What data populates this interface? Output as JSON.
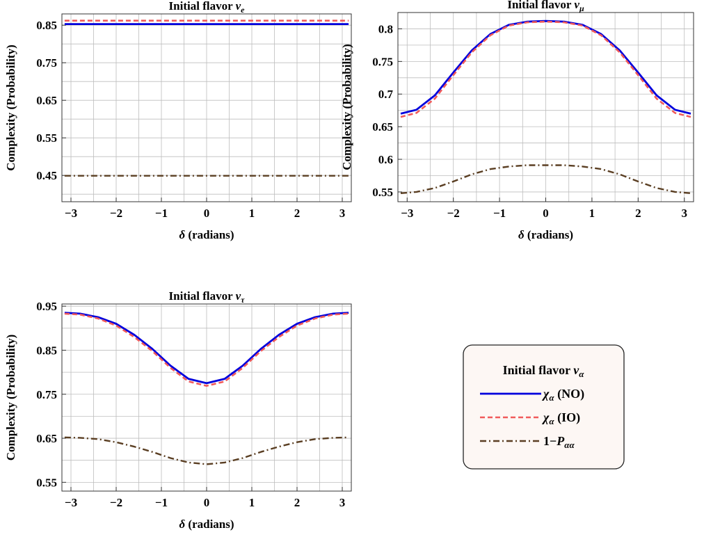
{
  "chart_data": [
    {
      "type": "line",
      "title": "Initial flavor ",
      "title_symbol": "ν",
      "title_sub": "e",
      "xlabel_symbol": "δ",
      "xlabel": " (radians)",
      "ylabel": "Complexity (Probability)",
      "xlim": [
        -3.2,
        3.2
      ],
      "ylim": [
        0.38,
        0.88
      ],
      "x_ticks": [
        -3,
        -2,
        -1,
        0,
        1,
        2,
        3
      ],
      "x_tick_labels": [
        "−3",
        "−2",
        "−1",
        "0",
        "1",
        "2",
        "3"
      ],
      "y_ticks": [
        0.45,
        0.55,
        0.65,
        0.75,
        0.85
      ],
      "y_tick_labels": [
        "0.45",
        "0.55",
        "0.65",
        "0.75",
        "0.85"
      ],
      "grid": true,
      "series": [
        {
          "key": "NO",
          "x": [
            -3.14,
            -2,
            -1,
            0,
            1,
            2,
            3.14
          ],
          "y": [
            0.853,
            0.853,
            0.853,
            0.853,
            0.853,
            0.853,
            0.853
          ]
        },
        {
          "key": "IO",
          "x": [
            -3.14,
            -2,
            -1,
            0,
            1,
            2,
            3.14
          ],
          "y": [
            0.862,
            0.862,
            0.862,
            0.862,
            0.862,
            0.862,
            0.862
          ]
        },
        {
          "key": "P",
          "x": [
            -3.14,
            -2,
            -1,
            0,
            1,
            2,
            3.14
          ],
          "y": [
            0.449,
            0.449,
            0.449,
            0.449,
            0.449,
            0.449,
            0.449
          ]
        }
      ]
    },
    {
      "type": "line",
      "title": "Initial flavor ",
      "title_symbol": "ν",
      "title_sub": "μ",
      "xlabel_symbol": "δ",
      "xlabel": " (radians)",
      "ylabel": "Complexity (Probability)",
      "xlim": [
        -3.2,
        3.2
      ],
      "ylim": [
        0.535,
        0.825
      ],
      "x_ticks": [
        -3,
        -2,
        -1,
        0,
        1,
        2,
        3
      ],
      "x_tick_labels": [
        "−3",
        "−2",
        "−1",
        "0",
        "1",
        "2",
        "3"
      ],
      "y_ticks": [
        0.55,
        0.6,
        0.65,
        0.7,
        0.75,
        0.8
      ],
      "y_tick_labels": [
        "0.55",
        "0.6",
        "0.65",
        "0.7",
        "0.75",
        "0.8"
      ],
      "grid": true,
      "series": [
        {
          "key": "NO",
          "x": [
            -3.14,
            -2.8,
            -2.4,
            -2,
            -1.6,
            -1.2,
            -0.8,
            -0.4,
            0,
            0.4,
            0.8,
            1.2,
            1.6,
            2,
            2.4,
            2.8,
            3.14
          ],
          "y": [
            0.67,
            0.676,
            0.698,
            0.733,
            0.767,
            0.792,
            0.806,
            0.811,
            0.812,
            0.811,
            0.806,
            0.792,
            0.767,
            0.733,
            0.698,
            0.676,
            0.67
          ]
        },
        {
          "key": "IO",
          "x": [
            -3.14,
            -2.8,
            -2.4,
            -2,
            -1.6,
            -1.2,
            -0.8,
            -0.4,
            0,
            0.4,
            0.8,
            1.2,
            1.6,
            2,
            2.4,
            2.8,
            3.14
          ],
          "y": [
            0.665,
            0.671,
            0.693,
            0.729,
            0.764,
            0.79,
            0.805,
            0.81,
            0.811,
            0.81,
            0.805,
            0.79,
            0.764,
            0.729,
            0.693,
            0.671,
            0.665
          ]
        },
        {
          "key": "P",
          "x": [
            -3.14,
            -2.8,
            -2.4,
            -2,
            -1.6,
            -1.2,
            -0.8,
            -0.4,
            0,
            0.4,
            0.8,
            1.2,
            1.6,
            2,
            2.4,
            2.8,
            3.14
          ],
          "y": [
            0.548,
            0.55,
            0.556,
            0.566,
            0.577,
            0.585,
            0.589,
            0.591,
            0.591,
            0.591,
            0.589,
            0.585,
            0.577,
            0.566,
            0.556,
            0.55,
            0.548
          ]
        }
      ]
    },
    {
      "type": "line",
      "title": "Initial flavor ",
      "title_symbol": "ν",
      "title_sub": "τ",
      "xlabel_symbol": "δ",
      "xlabel": " (radians)",
      "ylabel": "Complexity (Probability)",
      "xlim": [
        -3.2,
        3.2
      ],
      "ylim": [
        0.53,
        0.955
      ],
      "x_ticks": [
        -3,
        -2,
        -1,
        0,
        1,
        2,
        3
      ],
      "x_tick_labels": [
        "−3",
        "−2",
        "−1",
        "0",
        "1",
        "2",
        "3"
      ],
      "y_ticks": [
        0.55,
        0.65,
        0.75,
        0.85,
        0.95
      ],
      "y_tick_labels": [
        "0.55",
        "0.65",
        "0.75",
        "0.85",
        "0.95"
      ],
      "grid": true,
      "series": [
        {
          "key": "NO",
          "x": [
            -3.14,
            -2.8,
            -2.4,
            -2,
            -1.6,
            -1.2,
            -0.8,
            -0.4,
            0,
            0.4,
            0.8,
            1.2,
            1.6,
            2,
            2.4,
            2.8,
            3.14
          ],
          "y": [
            0.935,
            0.933,
            0.925,
            0.91,
            0.885,
            0.853,
            0.815,
            0.785,
            0.775,
            0.785,
            0.815,
            0.853,
            0.885,
            0.91,
            0.925,
            0.933,
            0.935
          ]
        },
        {
          "key": "IO",
          "x": [
            -3.14,
            -2.8,
            -2.4,
            -2,
            -1.6,
            -1.2,
            -0.8,
            -0.4,
            0,
            0.4,
            0.8,
            1.2,
            1.6,
            2,
            2.4,
            2.8,
            3.14
          ],
          "y": [
            0.933,
            0.931,
            0.922,
            0.906,
            0.88,
            0.848,
            0.81,
            0.779,
            0.769,
            0.779,
            0.81,
            0.848,
            0.88,
            0.906,
            0.922,
            0.931,
            0.933
          ]
        },
        {
          "key": "P",
          "x": [
            -3.14,
            -2.8,
            -2.4,
            -2,
            -1.6,
            -1.2,
            -0.8,
            -0.4,
            0,
            0.4,
            0.8,
            1.2,
            1.6,
            2,
            2.4,
            2.8,
            3.14
          ],
          "y": [
            0.652,
            0.651,
            0.648,
            0.641,
            0.631,
            0.619,
            0.605,
            0.595,
            0.591,
            0.595,
            0.605,
            0.619,
            0.631,
            0.641,
            0.648,
            0.651,
            0.652
          ]
        }
      ]
    }
  ],
  "legend": {
    "title": "Initial flavor ",
    "title_symbol": "ν",
    "title_sub": "α",
    "items": [
      {
        "key": "NO",
        "symbol": "χ",
        "sub": "α",
        "text": " (NO)"
      },
      {
        "key": "IO",
        "symbol": "χ",
        "sub": "α",
        "text": " (IO)"
      },
      {
        "key": "P",
        "prefix": "1−",
        "symbol": "P",
        "sub": "αα",
        "text": ""
      }
    ]
  },
  "colors": {
    "NO": "#0000dd",
    "IO": "#f05a5a",
    "P": "#5a3e22",
    "legend_bg": "#fdf7f4"
  }
}
